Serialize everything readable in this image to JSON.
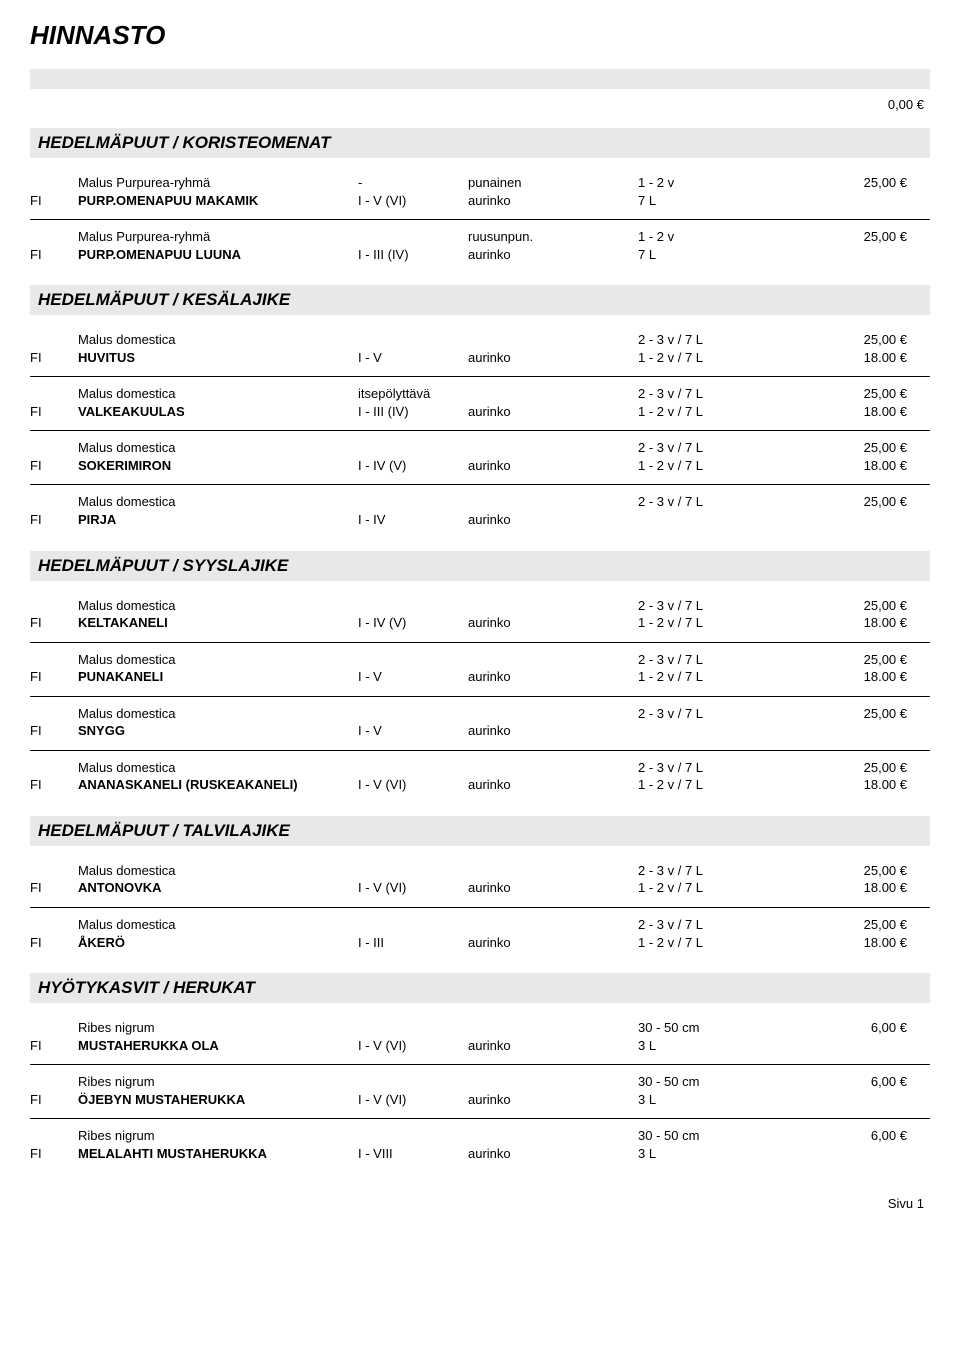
{
  "title": "HINNASTO",
  "top_price": "0,00 €",
  "page_label": "Sivu 1",
  "sections": [
    {
      "header": "HEDELMÄPUUT  /  KORISTEOMENAT",
      "items": [
        {
          "r1": {
            "c2": "Malus Purpurea-ryhmä",
            "c3": "-",
            "c4": "punainen",
            "c5": "1 - 2 v",
            "c6": "25,00 €"
          },
          "r2": {
            "c1": "FI",
            "c2": "PURP.OMENAPUU MAKAMIK",
            "c3": "I - V (VI)",
            "c4": "aurinko",
            "c5": "7 L"
          }
        },
        {
          "noborder": true,
          "r1": {
            "c2": "Malus Purpurea-ryhmä",
            "c4": "ruusunpun.",
            "c5": "1 - 2 v",
            "c6": "25,00 €"
          },
          "r2": {
            "c1": "FI",
            "c2": "PURP.OMENAPUU LUUNA",
            "c3": "I - III (IV)",
            "c4": "aurinko",
            "c5": "7 L"
          }
        }
      ]
    },
    {
      "header": "HEDELMÄPUUT / KESÄLAJIKE",
      "items": [
        {
          "r1": {
            "c2": "Malus domestica",
            "c5": "2 - 3 v / 7 L",
            "c6": "25,00 €"
          },
          "r2": {
            "c1": "FI",
            "c2": "HUVITUS",
            "c3": "I - V",
            "c4": "aurinko",
            "c5": "1 - 2 v / 7 L",
            "c6": "18.00 €"
          }
        },
        {
          "r1": {
            "c2": "Malus domestica",
            "c3": "itsepölyttävä",
            "c5": "2 - 3 v / 7 L",
            "c6": "25,00 €"
          },
          "r2": {
            "c1": "FI",
            "c2": "VALKEAKUULAS",
            "c3": "I - III (IV)",
            "c4": "aurinko",
            "c5": "1 - 2 v / 7 L",
            "c6": "18.00 €"
          }
        },
        {
          "r1": {
            "c2": "Malus domestica",
            "c5": "2 - 3 v / 7 L",
            "c6": "25,00 €"
          },
          "r2": {
            "c1": "FI",
            "c2": "SOKERIMIRON",
            "c3": "I - IV (V)",
            "c4": "aurinko",
            "c5": "1 - 2 v / 7 L",
            "c6": "18.00 €"
          }
        },
        {
          "noborder": true,
          "r1": {
            "c2": "Malus domestica",
            "c5": "2 - 3 v / 7 L",
            "c6": "25,00 €"
          },
          "r2": {
            "c1": "FI",
            "c2": "PIRJA",
            "c3": "I - IV",
            "c4": "aurinko"
          }
        }
      ]
    },
    {
      "header": "HEDELMÄPUUT / SYYSLAJIKE",
      "items": [
        {
          "r1": {
            "c2": "Malus domestica",
            "c5": "2 - 3 v / 7 L",
            "c6": "25,00 €"
          },
          "r2": {
            "c1": "FI",
            "c2": "KELTAKANELI",
            "c3": "I - IV (V)",
            "c4": "aurinko",
            "c5": "1 - 2 v / 7 L",
            "c6": "18.00 €"
          }
        },
        {
          "r1": {
            "c2": "Malus domestica",
            "c5": "2 - 3 v / 7 L",
            "c6": "25,00 €"
          },
          "r2": {
            "c1": "FI",
            "c2": "PUNAKANELI",
            "c3": "I - V",
            "c4": "aurinko",
            "c5": "1 - 2 v / 7 L",
            "c6": "18.00 €"
          }
        },
        {
          "r1": {
            "c2": "Malus domestica",
            "c5": "2 - 3 v / 7 L",
            "c6": "25,00 €"
          },
          "r2": {
            "c1": "FI",
            "c2": "SNYGG",
            "c3": "I - V",
            "c4": "aurinko"
          }
        },
        {
          "noborder": true,
          "r1": {
            "c2": "Malus domestica",
            "c5": "2 - 3 v / 7 L",
            "c6": "25,00 €"
          },
          "r2": {
            "c1": "FI",
            "c2": "ANANASKANELI (RUSKEAKANELI)",
            "c3": "I - V (VI)",
            "c4": "aurinko",
            "c5": "1 - 2 v / 7 L",
            "c6": "18.00 €"
          }
        }
      ]
    },
    {
      "header": "HEDELMÄPUUT / TALVILAJIKE",
      "items": [
        {
          "r1": {
            "c2": "Malus domestica",
            "c5": "2 - 3 v / 7 L",
            "c6": "25,00 €"
          },
          "r2": {
            "c1": "FI",
            "c2": "ANTONOVKA",
            "c3": "I - V (VI)",
            "c4": "aurinko",
            "c5": "1 - 2 v / 7 L",
            "c6": "18.00 €"
          }
        },
        {
          "noborder": true,
          "r1": {
            "c2": "Malus domestica",
            "c5": "2 - 3 v / 7 L",
            "c6": "25,00 €"
          },
          "r2": {
            "c1": "FI",
            "c2": "ÅKERÖ",
            "c3": "I - III",
            "c4": "aurinko",
            "c5": "1 - 2 v / 7 L",
            "c6": "18.00 €"
          }
        }
      ]
    },
    {
      "header": "HYÖTYKASVIT /   HERUKAT",
      "items": [
        {
          "r1": {
            "c2": "Ribes  nigrum",
            "c5": "30 - 50 cm",
            "c6": "6,00 €"
          },
          "r2": {
            "c1": "FI",
            "c2": "MUSTAHERUKKA OLA",
            "c3": "I - V (VI)",
            "c4": "aurinko",
            "c5": "3 L"
          }
        },
        {
          "r1": {
            "c2": "Ribes nigrum",
            "c5": "30 - 50 cm",
            "c6": "6,00 €"
          },
          "r2": {
            "c1": "FI",
            "c2": "ÖJEBYN  MUSTAHERUKKA",
            "c3": "I - V (VI)",
            "c4": "aurinko",
            "c5": "3 L"
          }
        },
        {
          "noborder": true,
          "r1": {
            "c2": "Ribes nigrum",
            "c5": "30 - 50 cm",
            "c6": "6,00 €"
          },
          "r2": {
            "c1": "FI",
            "c2": "MELALAHTI  MUSTAHERUKKA",
            "c3": "I - VIII",
            "c4": "aurinko",
            "c5": "3 L"
          }
        }
      ]
    }
  ]
}
